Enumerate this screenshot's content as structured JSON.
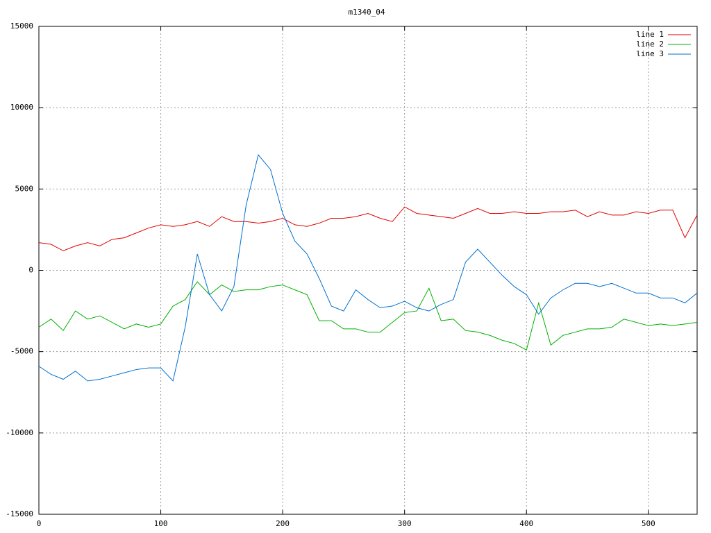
{
  "chart_data": {
    "type": "line",
    "title": "m1340_04",
    "x": [
      0,
      10,
      20,
      30,
      40,
      50,
      60,
      70,
      80,
      90,
      100,
      110,
      120,
      130,
      140,
      150,
      160,
      170,
      180,
      190,
      200,
      210,
      220,
      230,
      240,
      250,
      260,
      270,
      280,
      290,
      300,
      310,
      320,
      330,
      340,
      350,
      360,
      370,
      380,
      390,
      400,
      410,
      420,
      430,
      440,
      450,
      460,
      470,
      480,
      490,
      500,
      510,
      520,
      530,
      540
    ],
    "series": [
      {
        "name": "line 1",
        "color": "#e00000",
        "values": [
          1700,
          1600,
          1200,
          1500,
          1700,
          1500,
          1900,
          2000,
          2300,
          2600,
          2800,
          2700,
          2800,
          3000,
          2700,
          3300,
          3000,
          3000,
          2900,
          3000,
          3200,
          2800,
          2700,
          2900,
          3200,
          3200,
          3300,
          3500,
          3200,
          3000,
          3900,
          3500,
          3400,
          3300,
          3200,
          3500,
          3800,
          3500,
          3500,
          3600,
          3500,
          3500,
          3600,
          3600,
          3700,
          3300,
          3600,
          3400,
          3400,
          3600,
          3500,
          3700,
          3700,
          2000,
          3400
        ]
      },
      {
        "name": "line 2",
        "color": "#00b000",
        "values": [
          -3500,
          -3000,
          -3700,
          -2500,
          -3000,
          -2800,
          -3200,
          -3600,
          -3300,
          -3500,
          -3300,
          -2200,
          -1800,
          -700,
          -1500,
          -900,
          -1300,
          -1200,
          -1200,
          -1000,
          -900,
          -1200,
          -1500,
          -3100,
          -3100,
          -3600,
          -3600,
          -3800,
          -3800,
          -3200,
          -2600,
          -2500,
          -1100,
          -3100,
          -3000,
          -3700,
          -3800,
          -4000,
          -4300,
          -4500,
          -4900,
          -2000,
          -4600,
          -4000,
          -3800,
          -3600,
          -3600,
          -3500,
          -3000,
          -3200,
          -3400,
          -3300,
          -3400,
          -3300,
          -3200
        ]
      },
      {
        "name": "line 3",
        "color": "#0070d0",
        "values": [
          -5900,
          -6400,
          -6700,
          -6200,
          -6800,
          -6700,
          -6500,
          -6300,
          -6100,
          -6000,
          -6000,
          -6800,
          -3500,
          1000,
          -1500,
          -2500,
          -1000,
          4000,
          7100,
          6200,
          3500,
          1800,
          1000,
          -500,
          -2200,
          -2500,
          -1200,
          -1800,
          -2300,
          -2200,
          -1900,
          -2300,
          -2500,
          -2100,
          -1800,
          500,
          1300,
          500,
          -300,
          -1000,
          -1500,
          -2700,
          -1700,
          -1200,
          -800,
          -800,
          -1000,
          -800,
          -1100,
          -1400,
          -1400,
          -1700,
          -1700,
          -2000,
          -1400
        ]
      }
    ],
    "xlim": [
      0,
      540
    ],
    "ylim": [
      -15000,
      15000
    ],
    "xticks": [
      0,
      100,
      200,
      300,
      400,
      500
    ],
    "yticks": [
      -15000,
      -10000,
      -5000,
      0,
      5000,
      10000,
      15000
    ],
    "grid": true,
    "legend": "top-right"
  }
}
